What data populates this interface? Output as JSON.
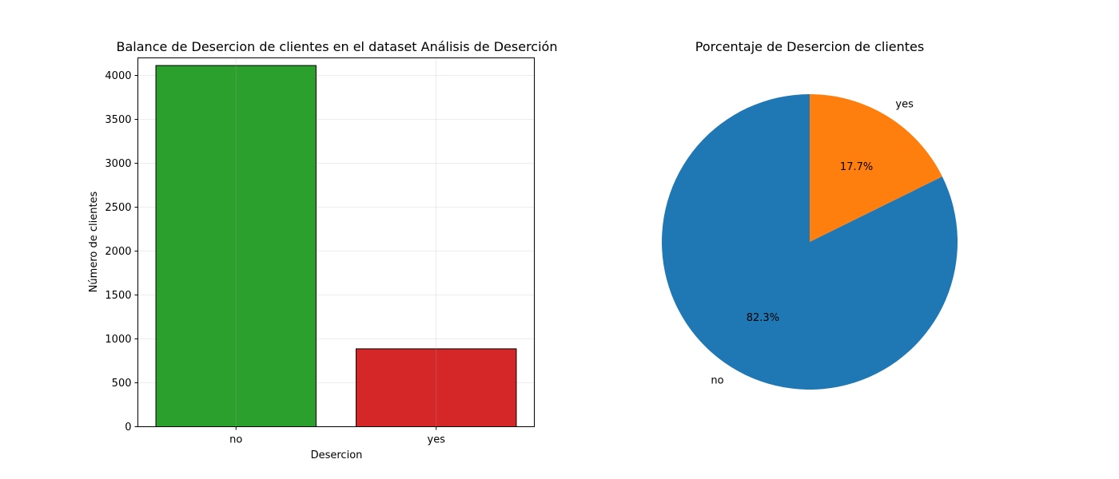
{
  "chart_data": [
    {
      "type": "bar",
      "title": "Balance de Desercion de clientes en el dataset Análisis de Deserción",
      "xlabel": "Desercion",
      "ylabel": "Número de clientes",
      "categories": [
        "no",
        "yes"
      ],
      "values": [
        4113,
        887
      ],
      "colors": [
        "#2ca02c",
        "#d62728"
      ],
      "edge_color": "#000000",
      "ylim": [
        0,
        4200
      ],
      "yticks": [
        0,
        500,
        1000,
        1500,
        2000,
        2500,
        3000,
        3500,
        4000
      ],
      "grid": true
    },
    {
      "type": "pie",
      "title": "Porcentaje de Desercion de clientes",
      "labels": [
        "no",
        "yes"
      ],
      "values": [
        82.3,
        17.7
      ],
      "autopct": [
        "82.3%",
        "17.7%"
      ],
      "colors": [
        "#1f77b4",
        "#ff7f0e"
      ],
      "start_angle": 90,
      "direction": "clockwise-from-yes"
    }
  ]
}
